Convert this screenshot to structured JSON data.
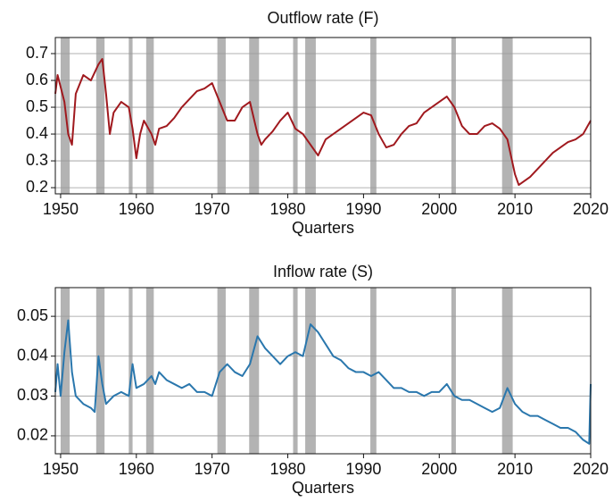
{
  "chart_data": [
    {
      "type": "line",
      "title": "Outflow rate (F)",
      "xlabel": "Quarters",
      "color": "#a0191e",
      "xlim": [
        1949.3,
        2020
      ],
      "xticks": [
        1950,
        1960,
        1970,
        1980,
        1990,
        2000,
        2010,
        2020
      ],
      "ylim": [
        0.177,
        0.76
      ],
      "yticks": [
        0.2,
        0.3,
        0.4,
        0.5,
        0.6,
        0.7
      ],
      "grid": true,
      "recessions": {
        "color": "#b3b3b3",
        "spans": [
          [
            1950.0,
            1951.2
          ],
          [
            1954.7,
            1955.8
          ],
          [
            1959.0,
            1959.5
          ],
          [
            1961.3,
            1962.3
          ],
          [
            1970.7,
            1971.8
          ],
          [
            1974.9,
            1976.2
          ],
          [
            1980.7,
            1981.3
          ],
          [
            1982.3,
            1983.7
          ],
          [
            1990.9,
            1991.7
          ],
          [
            2001.6,
            2002.2
          ],
          [
            2008.3,
            2009.7
          ]
        ]
      },
      "x": [
        1949.3,
        1949.6,
        1950.5,
        1951,
        1951.5,
        1952,
        1953,
        1954,
        1955,
        1955.5,
        1956,
        1956.5,
        1957,
        1958,
        1959,
        1959.5,
        1960,
        1960.5,
        1961,
        1962,
        1962.5,
        1963,
        1964,
        1965,
        1966,
        1967,
        1968,
        1969,
        1970,
        1971,
        1972,
        1973,
        1974,
        1975,
        1976,
        1976.5,
        1977,
        1978,
        1979,
        1980,
        1981,
        1982,
        1983,
        1984,
        1985,
        1986,
        1987,
        1988,
        1989,
        1990,
        1991,
        1992,
        1993,
        1994,
        1995,
        1996,
        1997,
        1998,
        1999,
        2000,
        2001,
        2002,
        2003,
        2004,
        2005,
        2006,
        2007,
        2008,
        2009,
        2010,
        2010.5,
        2011,
        2012,
        2013,
        2014,
        2015,
        2016,
        2017,
        2018,
        2019,
        2020
      ],
      "values": [
        0.55,
        0.62,
        0.52,
        0.4,
        0.36,
        0.55,
        0.62,
        0.6,
        0.66,
        0.68,
        0.55,
        0.4,
        0.48,
        0.52,
        0.5,
        0.42,
        0.31,
        0.4,
        0.45,
        0.4,
        0.36,
        0.42,
        0.43,
        0.46,
        0.5,
        0.53,
        0.56,
        0.57,
        0.59,
        0.52,
        0.45,
        0.45,
        0.5,
        0.52,
        0.4,
        0.36,
        0.38,
        0.41,
        0.45,
        0.48,
        0.42,
        0.4,
        0.36,
        0.32,
        0.38,
        0.4,
        0.42,
        0.44,
        0.46,
        0.48,
        0.47,
        0.4,
        0.35,
        0.36,
        0.4,
        0.43,
        0.44,
        0.48,
        0.5,
        0.52,
        0.54,
        0.5,
        0.43,
        0.4,
        0.4,
        0.43,
        0.44,
        0.42,
        0.38,
        0.25,
        0.21,
        0.22,
        0.24,
        0.27,
        0.3,
        0.33,
        0.35,
        0.37,
        0.38,
        0.4,
        0.45
      ]
    },
    {
      "type": "line",
      "title": "Inflow rate (S)",
      "xlabel": "Quarters",
      "color": "#2a77ad",
      "xlim": [
        1949.3,
        2020
      ],
      "xticks": [
        1950,
        1960,
        1970,
        1980,
        1990,
        2000,
        2010,
        2020
      ],
      "ylim": [
        0.0155,
        0.0572
      ],
      "yticks": [
        0.02,
        0.03,
        0.04,
        0.05
      ],
      "grid": true,
      "recessions": {
        "color": "#b3b3b3",
        "spans": [
          [
            1950.0,
            1951.2
          ],
          [
            1954.7,
            1955.8
          ],
          [
            1959.0,
            1959.5
          ],
          [
            1961.3,
            1962.3
          ],
          [
            1970.7,
            1971.8
          ],
          [
            1974.9,
            1976.2
          ],
          [
            1980.7,
            1981.3
          ],
          [
            1982.3,
            1983.7
          ],
          [
            1990.9,
            1991.7
          ],
          [
            2001.6,
            2002.2
          ],
          [
            2008.3,
            2009.7
          ]
        ]
      },
      "x": [
        1949.3,
        1949.6,
        1950,
        1950.5,
        1951,
        1951.5,
        1952,
        1953,
        1954,
        1954.5,
        1955,
        1955.5,
        1956,
        1957,
        1958,
        1959,
        1959.5,
        1960,
        1961,
        1962,
        1962.5,
        1963,
        1964,
        1965,
        1966,
        1967,
        1968,
        1969,
        1970,
        1971,
        1972,
        1973,
        1974,
        1975,
        1976,
        1977,
        1978,
        1979,
        1980,
        1981,
        1982,
        1983,
        1984,
        1985,
        1986,
        1987,
        1988,
        1989,
        1990,
        1991,
        1992,
        1993,
        1994,
        1995,
        1996,
        1997,
        1998,
        1999,
        2000,
        2001,
        2002,
        2003,
        2004,
        2005,
        2006,
        2007,
        2008,
        2009,
        2010,
        2011,
        2012,
        2013,
        2014,
        2015,
        2016,
        2017,
        2018,
        2019,
        2019.8,
        2020
      ],
      "values": [
        0.031,
        0.038,
        0.03,
        0.041,
        0.049,
        0.036,
        0.03,
        0.028,
        0.027,
        0.026,
        0.04,
        0.033,
        0.028,
        0.03,
        0.031,
        0.03,
        0.038,
        0.032,
        0.033,
        0.035,
        0.033,
        0.036,
        0.034,
        0.033,
        0.032,
        0.033,
        0.031,
        0.031,
        0.03,
        0.036,
        0.038,
        0.036,
        0.035,
        0.038,
        0.045,
        0.042,
        0.04,
        0.038,
        0.04,
        0.041,
        0.04,
        0.048,
        0.046,
        0.043,
        0.04,
        0.039,
        0.037,
        0.036,
        0.036,
        0.035,
        0.036,
        0.034,
        0.032,
        0.032,
        0.031,
        0.031,
        0.03,
        0.031,
        0.031,
        0.033,
        0.03,
        0.029,
        0.029,
        0.028,
        0.027,
        0.026,
        0.027,
        0.032,
        0.028,
        0.026,
        0.025,
        0.025,
        0.024,
        0.023,
        0.022,
        0.022,
        0.021,
        0.019,
        0.018,
        0.033
      ]
    }
  ]
}
